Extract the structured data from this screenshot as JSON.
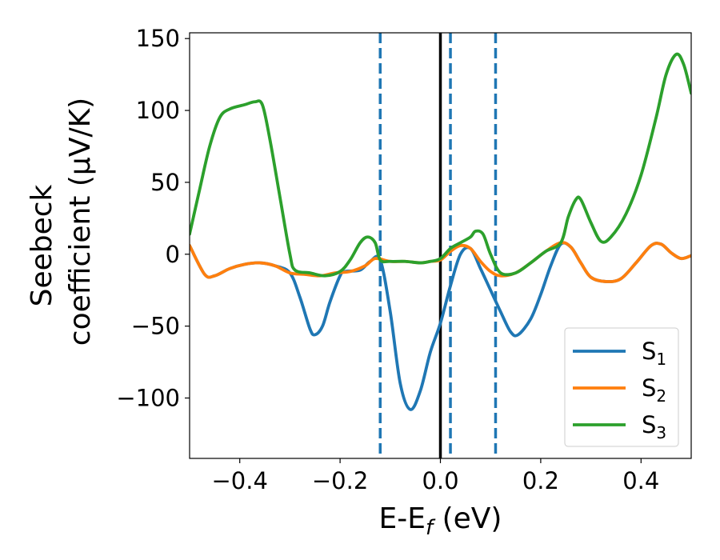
{
  "chart_data": {
    "type": "line",
    "title": "",
    "xlabel": {
      "main": "E-E",
      "sub": "f",
      "tail": " (eV)"
    },
    "ylabel": {
      "line1": "Seebeck",
      "line2": "coefficient  (μV/K)"
    },
    "xlim": [
      -0.5,
      0.5
    ],
    "ylim": [
      -142,
      154
    ],
    "x_ticks": [
      {
        "value": -0.4,
        "label": "−0.4"
      },
      {
        "value": -0.2,
        "label": "−0.2"
      },
      {
        "value": 0.0,
        "label": "0.0"
      },
      {
        "value": 0.2,
        "label": "0.2"
      },
      {
        "value": 0.4,
        "label": "0.4"
      }
    ],
    "y_ticks": [
      {
        "value": 150,
        "label": "150"
      },
      {
        "value": 100,
        "label": "100"
      },
      {
        "value": 50,
        "label": "50"
      },
      {
        "value": 0,
        "label": "0"
      },
      {
        "value": -50,
        "label": "−50"
      },
      {
        "value": -100,
        "label": "−100"
      }
    ],
    "grid": false,
    "legend_position": "bottom-right",
    "vertical_lines": [
      {
        "x": 0.0,
        "style": "solid",
        "color": "#000000"
      },
      {
        "x": -0.12,
        "style": "dashed",
        "color": "#1f77b4"
      },
      {
        "x": 0.02,
        "style": "dashed",
        "color": "#1f77b4"
      },
      {
        "x": 0.11,
        "style": "dashed",
        "color": "#1f77b4"
      }
    ],
    "series": [
      {
        "name": "S",
        "sub": "1",
        "color": "#1f77b4",
        "points": [
          [
            -0.5,
            6
          ],
          [
            -0.47,
            -14
          ],
          [
            -0.45,
            -15
          ],
          [
            -0.42,
            -10
          ],
          [
            -0.39,
            -7
          ],
          [
            -0.36,
            -6
          ],
          [
            -0.33,
            -8
          ],
          [
            -0.3,
            -13
          ],
          [
            -0.28,
            -30
          ],
          [
            -0.26,
            -52
          ],
          [
            -0.25,
            -56
          ],
          [
            -0.235,
            -50
          ],
          [
            -0.22,
            -33
          ],
          [
            -0.2,
            -15
          ],
          [
            -0.19,
            -12
          ],
          [
            -0.16,
            -11
          ],
          [
            -0.14,
            -5
          ],
          [
            -0.12,
            -4
          ],
          [
            -0.1,
            -40
          ],
          [
            -0.08,
            -90
          ],
          [
            -0.06,
            -108
          ],
          [
            -0.04,
            -95
          ],
          [
            -0.02,
            -68
          ],
          [
            0.0,
            -48
          ],
          [
            0.02,
            -22
          ],
          [
            0.04,
            0
          ],
          [
            0.06,
            4
          ],
          [
            0.08,
            -10
          ],
          [
            0.1,
            -25
          ],
          [
            0.12,
            -40
          ],
          [
            0.14,
            -54
          ],
          [
            0.155,
            -56
          ],
          [
            0.18,
            -45
          ],
          [
            0.2,
            -28
          ],
          [
            0.22,
            -8
          ],
          [
            0.24,
            7
          ],
          [
            0.26,
            5
          ],
          [
            0.28,
            -6
          ],
          [
            0.3,
            -16
          ],
          [
            0.33,
            -19
          ],
          [
            0.36,
            -17
          ],
          [
            0.39,
            -6
          ],
          [
            0.42,
            6
          ],
          [
            0.44,
            7
          ],
          [
            0.46,
            1
          ],
          [
            0.48,
            -3
          ],
          [
            0.5,
            -1
          ]
        ]
      },
      {
        "name": "S",
        "sub": "2",
        "color": "#ff7f0e",
        "points": [
          [
            -0.5,
            6
          ],
          [
            -0.47,
            -14
          ],
          [
            -0.45,
            -15
          ],
          [
            -0.42,
            -10
          ],
          [
            -0.39,
            -7
          ],
          [
            -0.36,
            -6
          ],
          [
            -0.33,
            -8
          ],
          [
            -0.3,
            -13
          ],
          [
            -0.27,
            -14
          ],
          [
            -0.24,
            -15
          ],
          [
            -0.21,
            -13
          ],
          [
            -0.18,
            -12
          ],
          [
            -0.15,
            -8
          ],
          [
            -0.13,
            -3
          ],
          [
            -0.1,
            -5
          ],
          [
            -0.07,
            -5
          ],
          [
            -0.04,
            -6
          ],
          [
            -0.02,
            -5
          ],
          [
            0.0,
            -4
          ],
          [
            0.02,
            2
          ],
          [
            0.04,
            6
          ],
          [
            0.06,
            4
          ],
          [
            0.08,
            -5
          ],
          [
            0.1,
            -12
          ],
          [
            0.12,
            -15
          ],
          [
            0.15,
            -13
          ],
          [
            0.18,
            -6
          ],
          [
            0.21,
            2
          ],
          [
            0.24,
            8
          ],
          [
            0.26,
            5
          ],
          [
            0.28,
            -6
          ],
          [
            0.3,
            -16
          ],
          [
            0.33,
            -19
          ],
          [
            0.36,
            -17
          ],
          [
            0.39,
            -6
          ],
          [
            0.42,
            6
          ],
          [
            0.44,
            7
          ],
          [
            0.46,
            1
          ],
          [
            0.48,
            -3
          ],
          [
            0.5,
            -1
          ]
        ]
      },
      {
        "name": "S",
        "sub": "3",
        "color": "#2ca02c",
        "points": [
          [
            -0.5,
            14
          ],
          [
            -0.48,
            45
          ],
          [
            -0.46,
            75
          ],
          [
            -0.44,
            95
          ],
          [
            -0.42,
            101
          ],
          [
            -0.39,
            104
          ],
          [
            -0.37,
            106
          ],
          [
            -0.355,
            104
          ],
          [
            -0.34,
            80
          ],
          [
            -0.32,
            40
          ],
          [
            -0.3,
            0
          ],
          [
            -0.29,
            -11
          ],
          [
            -0.26,
            -13
          ],
          [
            -0.23,
            -15
          ],
          [
            -0.2,
            -12
          ],
          [
            -0.18,
            -4
          ],
          [
            -0.16,
            8
          ],
          [
            -0.145,
            12
          ],
          [
            -0.13,
            8
          ],
          [
            -0.12,
            -4
          ],
          [
            -0.1,
            -5
          ],
          [
            -0.07,
            -5
          ],
          [
            -0.04,
            -6
          ],
          [
            -0.02,
            -5
          ],
          [
            0.0,
            -3
          ],
          [
            0.02,
            4
          ],
          [
            0.04,
            8
          ],
          [
            0.06,
            12
          ],
          [
            0.07,
            16
          ],
          [
            0.085,
            14
          ],
          [
            0.1,
            0
          ],
          [
            0.12,
            -13
          ],
          [
            0.15,
            -13
          ],
          [
            0.18,
            -6
          ],
          [
            0.21,
            2
          ],
          [
            0.24,
            8
          ],
          [
            0.255,
            26
          ],
          [
            0.27,
            38
          ],
          [
            0.28,
            38
          ],
          [
            0.3,
            22
          ],
          [
            0.32,
            9
          ],
          [
            0.34,
            12
          ],
          [
            0.37,
            28
          ],
          [
            0.4,
            55
          ],
          [
            0.43,
            95
          ],
          [
            0.45,
            125
          ],
          [
            0.47,
            139
          ],
          [
            0.485,
            132
          ],
          [
            0.5,
            112
          ]
        ]
      }
    ]
  }
}
